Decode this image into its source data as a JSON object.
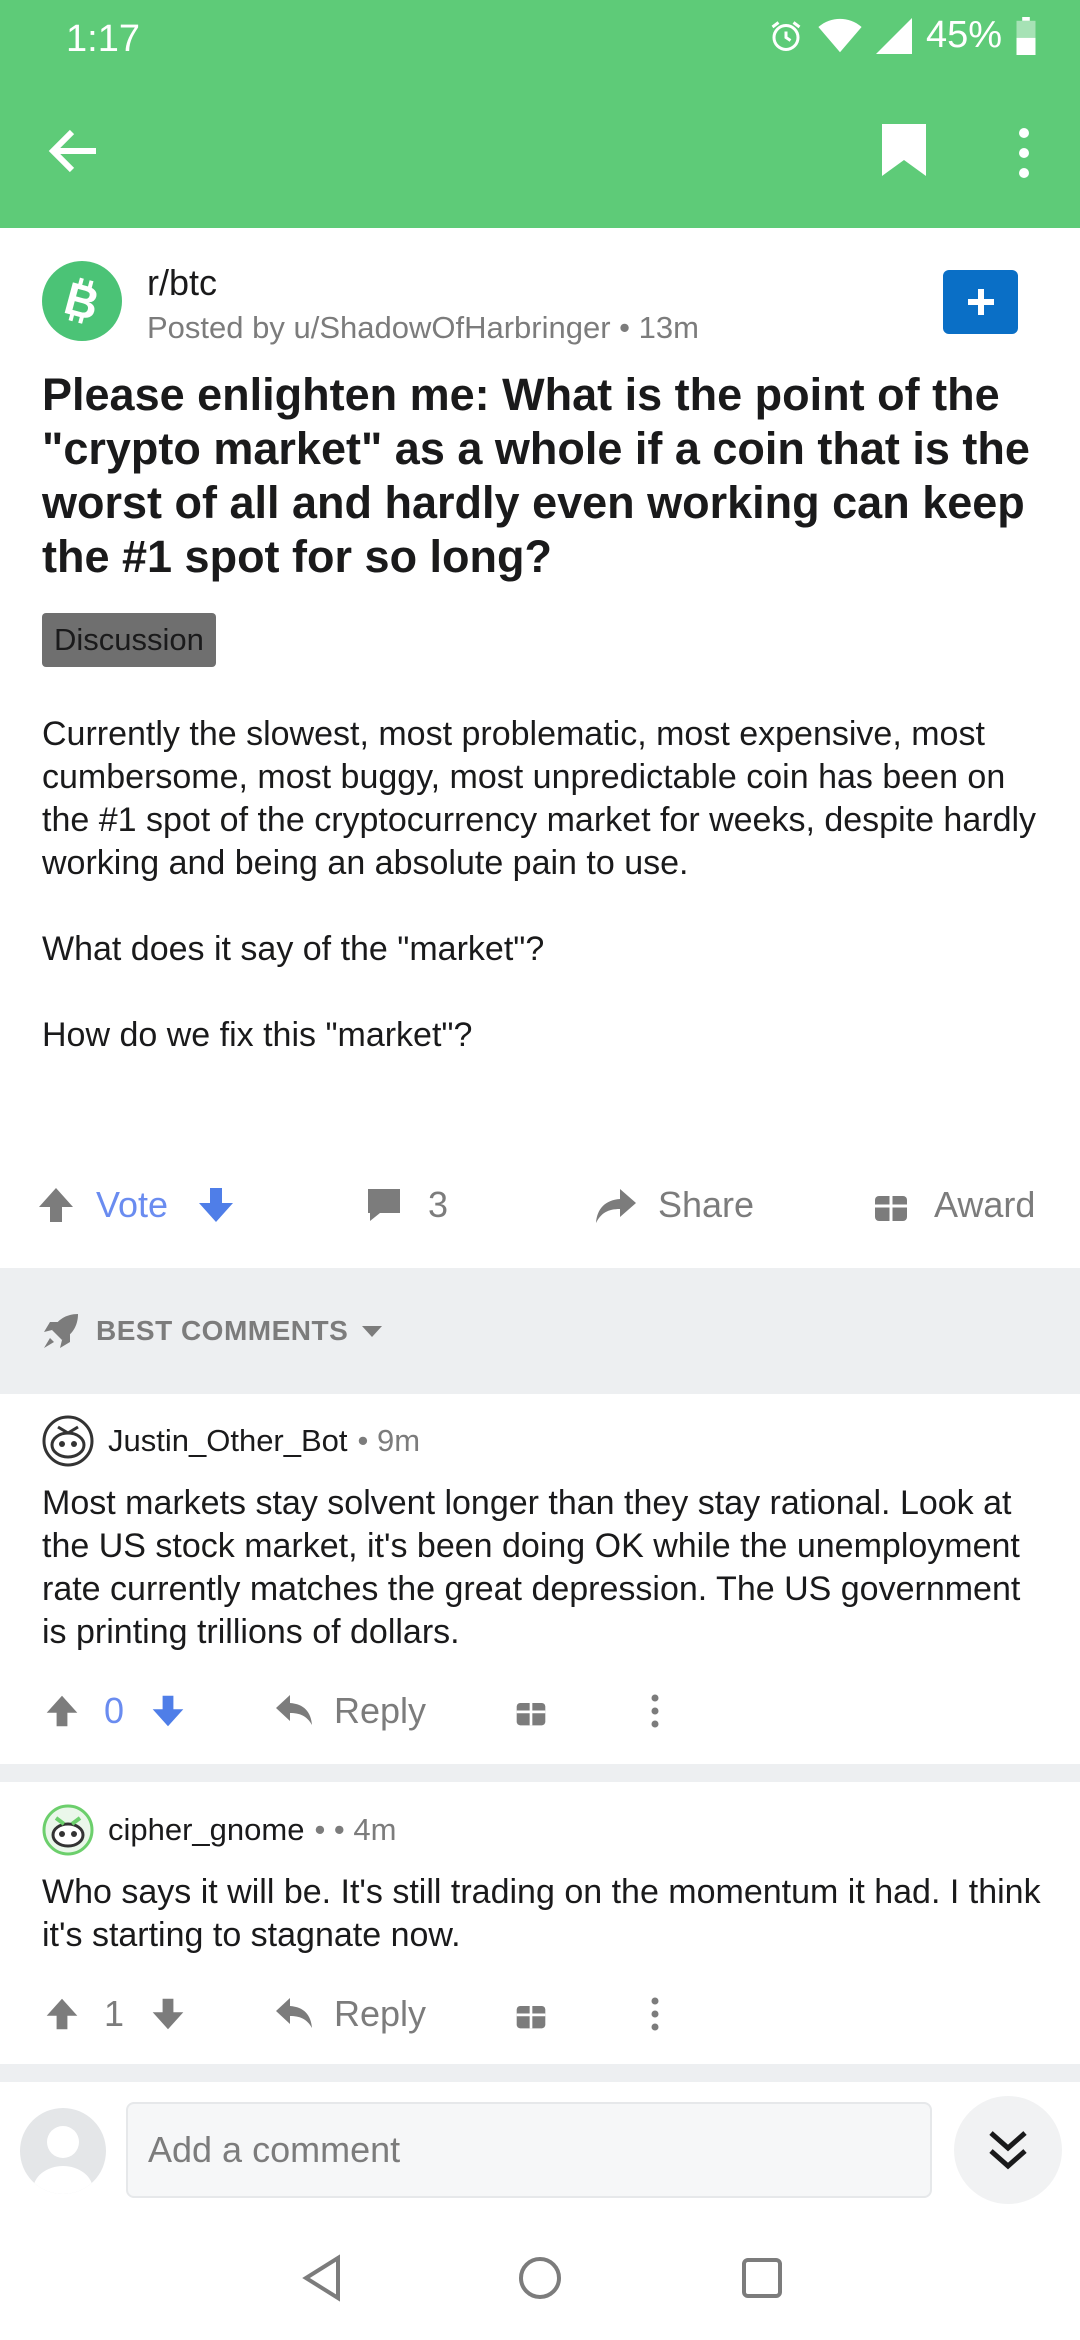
{
  "status": {
    "time": "1:17",
    "battery": "45%"
  },
  "post": {
    "subreddit": "r/btc",
    "posted_by": "Posted by u/ShadowOfHarbringer • 13m",
    "title": "Please enlighten me: What is the point of the \"crypto market\" as a whole if a coin that is the worst of all and hardly even working can keep the #1 spot for so long?",
    "flair": "Discussion",
    "body": [
      "Currently the slowest, most problematic, most expensive, most cumbersome, most buggy, most unpredictable coin has been on the #1 spot of the cryptocurrency market for weeks, despite hardly working and being an absolute pain to use.",
      "What does it say of the \"market\"?",
      "How do we fix this \"market\"?"
    ],
    "vote_label": "Vote",
    "comment_count": "3",
    "share_label": "Share",
    "award_label": "Award"
  },
  "sort": {
    "label": "BEST COMMENTS"
  },
  "comments": [
    {
      "author": "Justin_Other_Bot",
      "meta": "• 9m",
      "body": "Most markets stay solvent longer than they stay rational. Look at the US stock market, it's been doing OK while the unemployment rate currently matches the great depression. The US government is printing trillions of dollars.",
      "score": "0",
      "reply_label": "Reply"
    },
    {
      "author": "cipher_gnome",
      "meta": "• • 4m",
      "body": "Who says it will be. It's still trading on the momentum it had. I think it's starting to stagnate now.",
      "score": "1",
      "reply_label": "Reply"
    }
  ],
  "composer": {
    "placeholder": "Add a comment"
  },
  "colors": {
    "app_bar": "#5ecb78",
    "accent_blue": "#0a6fc6",
    "vote_blue": "#6a8cf0",
    "muted": "#7c7c7c"
  }
}
